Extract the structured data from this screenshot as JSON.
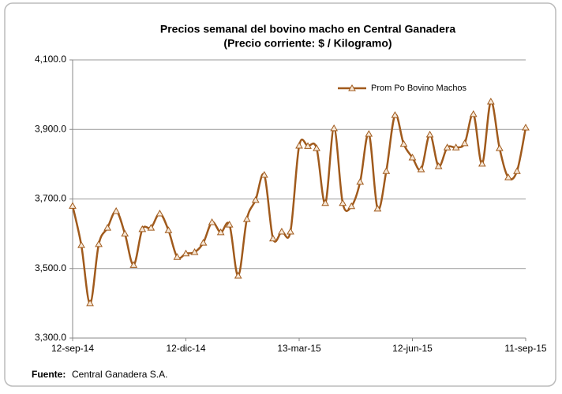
{
  "chart_data": {
    "type": "line",
    "title": "Precios semanal del bovino macho en Central Ganadera",
    "subtitle": "(Precio corriente: $ / Kilogramo)",
    "categories": [
      "12-sep-14",
      null,
      null,
      null,
      null,
      null,
      null,
      null,
      null,
      null,
      null,
      null,
      null,
      "12-dic-14",
      null,
      null,
      null,
      null,
      null,
      null,
      null,
      null,
      null,
      null,
      null,
      null,
      "13-mar-15",
      null,
      null,
      null,
      null,
      null,
      null,
      null,
      null,
      null,
      null,
      null,
      null,
      "12-jun-15",
      null,
      null,
      null,
      null,
      null,
      null,
      null,
      null,
      null,
      null,
      null,
      null,
      "11-sep-15"
    ],
    "series": [
      {
        "name": "Prom Po Bovino Machos",
        "color": "#a05a1c",
        "values": [
          3680,
          3567,
          3400,
          3570,
          3617,
          3665,
          3600,
          3510,
          3613,
          3617,
          3658,
          3610,
          3533,
          3543,
          3547,
          3574,
          3633,
          3604,
          3626,
          3479,
          3642,
          3697,
          3769,
          3586,
          3606,
          3606,
          3853,
          3852,
          3846,
          3688,
          3903,
          3688,
          3679,
          3749,
          3887,
          3672,
          3780,
          3941,
          3858,
          3819,
          3785,
          3885,
          3794,
          3848,
          3848,
          3860,
          3944,
          3801,
          3980,
          3846,
          3762,
          3780,
          3905
        ]
      }
    ],
    "ylim": [
      3300,
      4100
    ],
    "yticks": [
      {
        "value": 3300,
        "label": "3,300.0"
      },
      {
        "value": 3500,
        "label": "3,500.0"
      },
      {
        "value": 3700,
        "label": "3,700.0"
      },
      {
        "value": 3900,
        "label": "3,900.0"
      },
      {
        "value": 4100,
        "label": "4,100.0"
      }
    ],
    "grid": true,
    "legend": "upper-right",
    "source_label": "Fuente:",
    "source": "Central Ganadera S.A."
  }
}
